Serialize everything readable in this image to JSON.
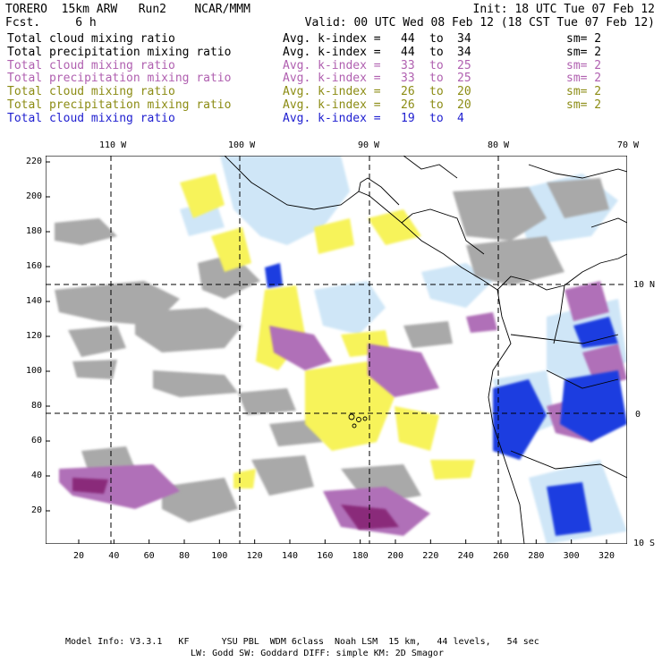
{
  "header": {
    "model": "TORERO  15km ARW   Run2    NCAR/MMM",
    "fcst": "Fcst.     6 h",
    "init": "Init: 18 UTC Tue 07 Feb 12",
    "valid": "Valid: 00 UTC Wed 08 Feb 12 (18 CST Tue 07 Feb 12)"
  },
  "legend": [
    {
      "name": "Total cloud mixing ratio",
      "kindex_label": "Avg. k-index =",
      "from": "44",
      "to_word": "to",
      "to": "34",
      "smooth": "sm= 2",
      "color": "#000000"
    },
    {
      "name": "Total precipitation mixing ratio",
      "kindex_label": "Avg. k-index =",
      "from": "44",
      "to_word": "to",
      "to": "34",
      "smooth": "sm= 2",
      "color": "#000000"
    },
    {
      "name": "Total cloud mixing ratio",
      "kindex_label": "Avg. k-index =",
      "from": "33",
      "to_word": "to",
      "to": "25",
      "smooth": "sm= 2",
      "color": "#b060b0"
    },
    {
      "name": "Total precipitation mixing ratio",
      "kindex_label": "Avg. k-index =",
      "from": "33",
      "to_word": "to",
      "to": "25",
      "smooth": "sm= 2",
      "color": "#b060b0"
    },
    {
      "name": "Total cloud mixing ratio",
      "kindex_label": "Avg. k-index =",
      "from": "26",
      "to_word": "to",
      "to": "20",
      "smooth": "sm= 2",
      "color": "#8c8c14"
    },
    {
      "name": "Total precipitation mixing ratio",
      "kindex_label": "Avg. k-index =",
      "from": "26",
      "to_word": "to",
      "to": "20",
      "smooth": "sm= 2",
      "color": "#8c8c14"
    },
    {
      "name": "Total cloud mixing ratio",
      "kindex_label": "Avg. k-index =",
      "from": "19",
      "to_word": "to",
      "to": "4",
      "smooth": "",
      "color": "#2020d0"
    }
  ],
  "top_longitude_labels": [
    "110 W",
    "100 W",
    "90 W",
    "80 W",
    "70 W"
  ],
  "right_latitude_labels": [
    "10 N",
    "0",
    "10 S"
  ],
  "y_grid_labels": [
    "220",
    "200",
    "180",
    "160",
    "140",
    "120",
    "100",
    "80",
    "60",
    "40",
    "20"
  ],
  "x_grid_labels": [
    "20",
    "40",
    "60",
    "80",
    "100",
    "120",
    "140",
    "160",
    "180",
    "200",
    "220",
    "240",
    "260",
    "280",
    "300",
    "320"
  ],
  "footer": {
    "line1": "Model Info: V3.3.1   KF      YSU PBL  WDM 6class  Noah LSM  15 km,   44 levels,   54 sec",
    "line2": "LW: Godd SW: Goddard DIFF: simple KM: 2D Smagor"
  },
  "colors": {
    "gray_field": "#a9a9a9",
    "purple_field": "#b070b8",
    "yellow_field": "#f7f35a",
    "light_blue_field": "#cfe6f7",
    "blue_field": "#1c3ee0",
    "dark_purple_core": "#8a2a7a"
  }
}
